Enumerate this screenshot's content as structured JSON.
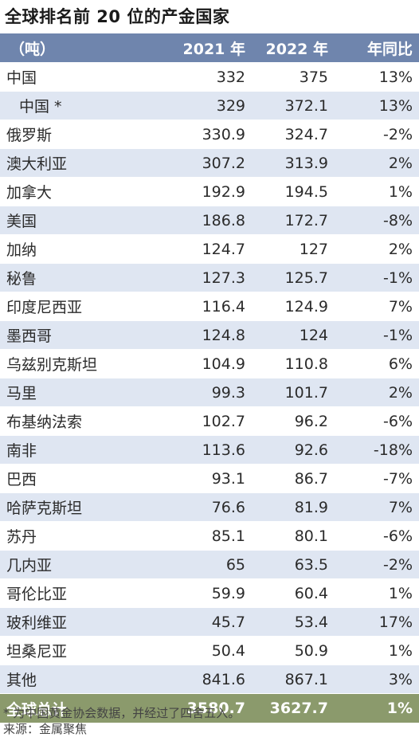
{
  "title": "全球排名前 20 位的产金国家",
  "table": {
    "header": [
      "（吨）",
      "2021 年",
      "2022 年",
      "年同比"
    ],
    "rows": [
      {
        "name": "中国",
        "y2021": "332",
        "y2022": "375",
        "yoy": "13%"
      },
      {
        "name": "中国 *",
        "y2021": "329",
        "y2022": "372.1",
        "yoy": "13%"
      },
      {
        "name": "俄罗斯",
        "y2021": "330.9",
        "y2022": "324.7",
        "yoy": "-2%"
      },
      {
        "name": "澳大利亚",
        "y2021": "307.2",
        "y2022": "313.9",
        "yoy": "2%"
      },
      {
        "name": "加拿大",
        "y2021": "192.9",
        "y2022": "194.5",
        "yoy": "1%"
      },
      {
        "name": "美国",
        "y2021": "186.8",
        "y2022": "172.7",
        "yoy": "-8%"
      },
      {
        "name": "加纳",
        "y2021": "124.7",
        "y2022": "127",
        "yoy": "2%"
      },
      {
        "name": "秘鲁",
        "y2021": "127.3",
        "y2022": "125.7",
        "yoy": "-1%"
      },
      {
        "name": "印度尼西亚",
        "y2021": "116.4",
        "y2022": "124.9",
        "yoy": "7%"
      },
      {
        "name": "墨西哥",
        "y2021": "124.8",
        "y2022": "124",
        "yoy": "-1%"
      },
      {
        "name": "乌兹别克斯坦",
        "y2021": "104.9",
        "y2022": "110.8",
        "yoy": "6%"
      },
      {
        "name": "马里",
        "y2021": "99.3",
        "y2022": "101.7",
        "yoy": "2%"
      },
      {
        "name": "布基纳法索",
        "y2021": "102.7",
        "y2022": "96.2",
        "yoy": "-6%"
      },
      {
        "name": "南非",
        "y2021": "113.6",
        "y2022": "92.6",
        "yoy": "-18%"
      },
      {
        "name": "巴西",
        "y2021": "93.1",
        "y2022": "86.7",
        "yoy": "-7%"
      },
      {
        "name": "哈萨克斯坦",
        "y2021": "76.6",
        "y2022": "81.9",
        "yoy": "7%"
      },
      {
        "name": "苏丹",
        "y2021": "85.1",
        "y2022": "80.1",
        "yoy": "-6%"
      },
      {
        "name": "几内亚",
        "y2021": "65",
        "y2022": "63.5",
        "yoy": "-2%"
      },
      {
        "name": "哥伦比亚",
        "y2021": "59.9",
        "y2022": "60.4",
        "yoy": "1%"
      },
      {
        "name": "玻利维亚",
        "y2021": "45.7",
        "y2022": "53.4",
        "yoy": "17%"
      },
      {
        "name": "坦桑尼亚",
        "y2021": "50.4",
        "y2022": "50.9",
        "yoy": "1%"
      },
      {
        "name": "其他",
        "y2021": "841.6",
        "y2022": "867.1",
        "yoy": "3%"
      }
    ],
    "total": {
      "name": "全球总计",
      "y2021": "3580.7",
      "y2022": "3627.7",
      "yoy": "1%"
    }
  },
  "footnote": "* 为中国黄金协会数据，并经过了四舍五入。",
  "source": "来源：金属聚焦",
  "colors": {
    "header_bg": "#6f85ad",
    "stripe_bg": "#dfe6f2",
    "total_bg": "#8b9a6c"
  }
}
